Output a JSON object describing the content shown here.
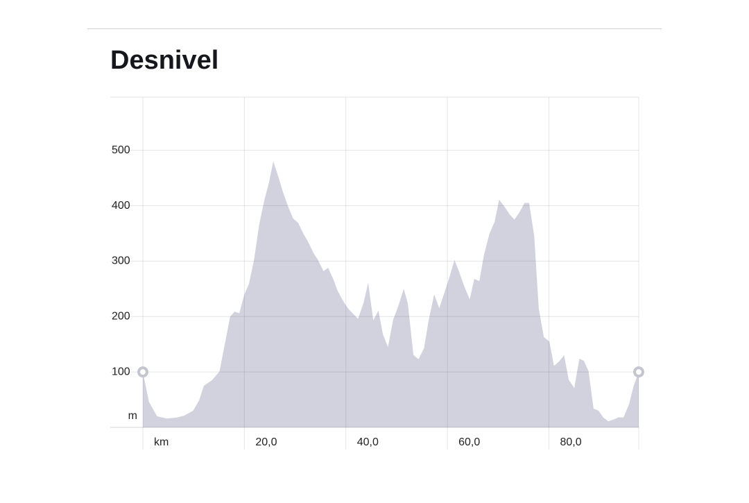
{
  "chart_data": {
    "type": "area",
    "title": "Desnivel",
    "xlabel": "km",
    "ylabel": "m",
    "x": [
      0,
      1.2,
      2.8,
      4.7,
      6.8,
      8.1,
      9.9,
      11.1,
      12.0,
      13.6,
      15.1,
      17.2,
      18.1,
      19.0,
      20.0,
      20.9,
      21.9,
      22.9,
      23.9,
      24.8,
      25.7,
      26.7,
      27.6,
      28.6,
      29.6,
      30.6,
      31.6,
      32.6,
      33.6,
      34.5,
      35.6,
      36.5,
      37.5,
      38.4,
      39.4,
      40.4,
      41.3,
      42.4,
      43.5,
      44.4,
      45.4,
      46.4,
      47.3,
      48.3,
      49.3,
      50.3,
      51.4,
      52.2,
      53.3,
      54.3,
      55.4,
      56.3,
      57.4,
      58.4,
      59.3,
      60.3,
      61.4,
      62.3,
      63.3,
      64.4,
      65.3,
      66.3,
      67.2,
      68.3,
      69.3,
      70.2,
      71.2,
      72.3,
      73.2,
      74.2,
      75.2,
      76.1,
      77.1,
      78.0,
      79.0,
      80.1,
      81.0,
      82.0,
      83.0,
      83.9,
      85.0,
      86.0,
      86.9,
      87.8,
      88.8,
      89.8,
      90.7,
      91.7,
      92.7,
      93.7,
      94.7,
      95.8,
      96.7,
      97.7
    ],
    "values": [
      100,
      46,
      20,
      16,
      18,
      21,
      30,
      49,
      75,
      85,
      101,
      200,
      209,
      206,
      240,
      259,
      302,
      365,
      409,
      440,
      480,
      452,
      425,
      399,
      377,
      369,
      350,
      334,
      315,
      302,
      282,
      288,
      268,
      246,
      229,
      215,
      206,
      196,
      225,
      261,
      193,
      211,
      168,
      145,
      194,
      218,
      250,
      224,
      131,
      123,
      143,
      193,
      240,
      215,
      240,
      268,
      302,
      281,
      255,
      231,
      268,
      264,
      311,
      350,
      371,
      411,
      399,
      384,
      375,
      388,
      405,
      405,
      346,
      215,
      163,
      155,
      111,
      119,
      130,
      86,
      71,
      124,
      120,
      102,
      34,
      30,
      18,
      11,
      14,
      18,
      18,
      42,
      75,
      100
    ],
    "color": "#d2d2de",
    "xlim": [
      0,
      97.7
    ],
    "ylim": [
      0,
      596
    ],
    "xticks": [
      {
        "value": 20,
        "label": "20,0"
      },
      {
        "value": 40,
        "label": "40,0"
      },
      {
        "value": 60,
        "label": "60,0"
      },
      {
        "value": 80,
        "label": "80,0"
      }
    ],
    "yticks": [
      100,
      200,
      300,
      400,
      500
    ],
    "grid": true
  }
}
